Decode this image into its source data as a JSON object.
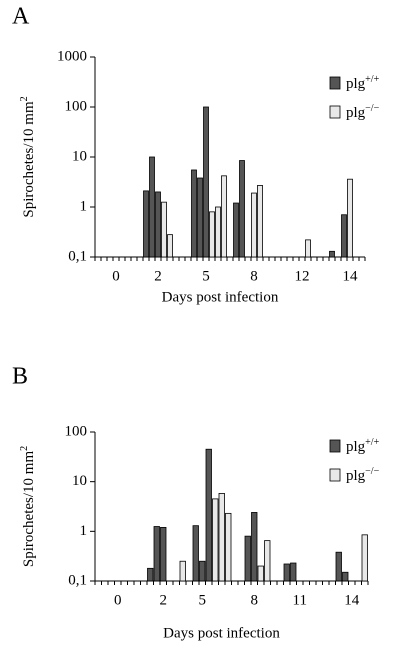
{
  "chart_data": [
    {
      "type": "bar",
      "label": "A",
      "y_label": "Spirochetes/10 mm2",
      "x_label": "Days post infection",
      "log_scale": true,
      "categories": [
        null,
        null,
        null,
        "0",
        null,
        null,
        null,
        null,
        null,
        null,
        "2",
        null,
        null,
        null,
        null,
        null,
        null,
        null,
        "5",
        null,
        null,
        null,
        null,
        null,
        null,
        null,
        "8",
        null,
        null,
        null,
        null,
        null,
        null,
        null,
        "12",
        null,
        null,
        null,
        null,
        null,
        null,
        null,
        "14",
        null,
        null
      ],
      "series": [
        {
          "name": "plg+/+",
          "color": "#555555",
          "values": [
            null,
            null,
            null,
            null,
            null,
            null,
            null,
            null,
            2.1,
            10,
            2,
            null,
            null,
            null,
            null,
            null,
            5.5,
            3.8,
            100,
            null,
            null,
            null,
            null,
            1.2,
            8.5,
            null,
            null,
            null,
            null,
            null,
            null,
            null,
            null,
            null,
            null,
            null,
            null,
            null,
            null,
            0.13,
            null,
            0.7,
            null,
            null,
            null
          ]
        },
        {
          "name": "plg−/−",
          "color": "#e8e8e8",
          "values": [
            null,
            null,
            null,
            null,
            null,
            null,
            null,
            null,
            null,
            null,
            null,
            1.25,
            0.28,
            null,
            null,
            null,
            null,
            null,
            null,
            0.8,
            1.0,
            4.2,
            null,
            null,
            null,
            null,
            1.9,
            2.7,
            null,
            null,
            null,
            null,
            null,
            null,
            null,
            0.22,
            null,
            null,
            null,
            null,
            null,
            null,
            3.6,
            null,
            null
          ]
        }
      ],
      "ylim": [
        0.1,
        1000
      ],
      "yticks": [
        1000,
        100,
        10,
        1,
        {
          "value": 0.1,
          "label": "0,1"
        }
      ],
      "legend": "upper right"
    },
    {
      "type": "bar",
      "label": "B",
      "y_label": "Spirochetes/10 mm2",
      "x_label": "Days post infection",
      "log_scale": true,
      "categories": [
        null,
        null,
        null,
        "0",
        null,
        null,
        null,
        null,
        null,
        null,
        "2",
        null,
        null,
        null,
        null,
        null,
        "5",
        null,
        null,
        null,
        null,
        null,
        null,
        null,
        "8",
        null,
        null,
        null,
        null,
        null,
        null,
        "11",
        null,
        null,
        null,
        null,
        null,
        null,
        null,
        "14",
        null,
        null
      ],
      "series": [
        {
          "name": "plg+/+",
          "color": "#555555",
          "values": [
            null,
            null,
            null,
            null,
            null,
            null,
            null,
            null,
            0.18,
            1.25,
            1.2,
            null,
            null,
            null,
            null,
            1.3,
            0.25,
            45,
            null,
            null,
            null,
            null,
            null,
            0.8,
            2.4,
            null,
            null,
            null,
            null,
            0.22,
            0.23,
            null,
            null,
            null,
            null,
            null,
            null,
            0.38,
            0.15,
            null,
            null,
            null
          ]
        },
        {
          "name": "plg−/−",
          "color": "#e8e8e8",
          "values": [
            null,
            null,
            null,
            null,
            null,
            null,
            null,
            null,
            null,
            null,
            null,
            null,
            null,
            0.25,
            null,
            null,
            null,
            null,
            4.5,
            5.8,
            2.3,
            null,
            null,
            null,
            null,
            0.2,
            0.65,
            null,
            null,
            null,
            null,
            null,
            null,
            null,
            null,
            null,
            null,
            null,
            null,
            null,
            null,
            0.85
          ]
        }
      ],
      "ylim": [
        0.1,
        100
      ],
      "yticks": [
        100,
        10,
        1,
        {
          "value": 0.1,
          "label": "0,1"
        }
      ],
      "legend": "upper right"
    }
  ]
}
